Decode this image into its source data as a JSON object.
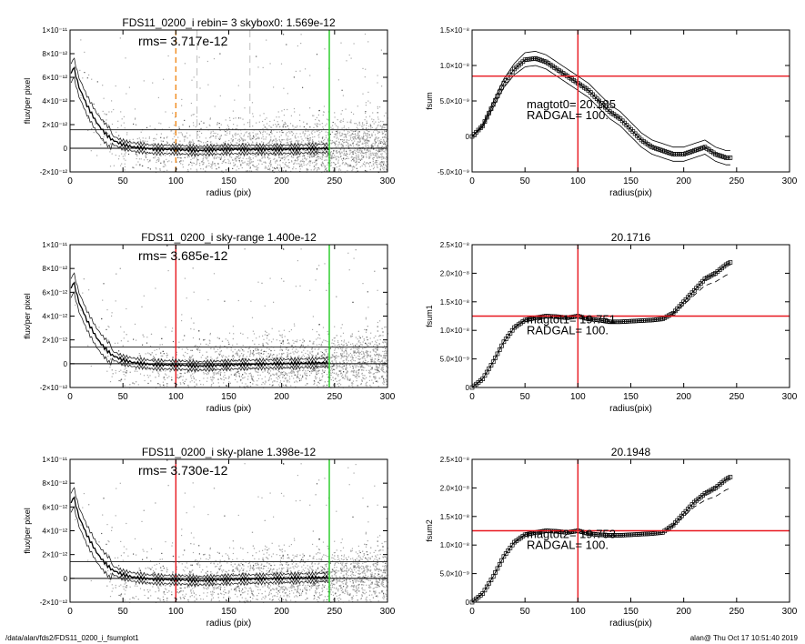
{
  "footer": {
    "path": "/data/alan/fds2/FDS11_0200_i_fsumplot1",
    "user_stamp": "alan@  Thu Oct 17 10:51:40 2019"
  },
  "colors": {
    "scatter": "#a8a8a8",
    "red_line": "#e8161e",
    "green_line": "#22cc22",
    "orange_line": "#f08a1c",
    "gray_dash": "#bfbfbf",
    "profile": "#000000"
  },
  "chart_data": [
    {
      "id": "left-1",
      "type": "scatter",
      "title": "FDS11_0200_i rebin= 3    skybox0:  1.569e-12",
      "annotation": "rms= 3.717e-12",
      "xlabel": "radius (pix)",
      "ylabel": "flux/per pixel",
      "xlim": [
        0,
        300
      ],
      "ylim": [
        -2e-12,
        1e-11
      ],
      "xticks": [
        0,
        50,
        100,
        150,
        200,
        250,
        300
      ],
      "xtick_labels": [
        "0",
        "50",
        "100",
        "150",
        "200",
        "250",
        "300"
      ],
      "yticks": [
        -2e-12,
        0,
        2e-12,
        4e-12,
        6e-12,
        8e-12,
        1e-11
      ],
      "ytick_labels": [
        "-2×10⁻¹²",
        "0",
        "2×10⁻¹²",
        "4×10⁻¹²",
        "6×10⁻¹²",
        "8×10⁻¹²",
        "1×10⁻¹¹"
      ],
      "hlines": [
        1.569e-12,
        0
      ],
      "vlines": [
        {
          "x": 100,
          "color": "orange",
          "style": "dashed"
        },
        {
          "x": 120,
          "color": "gray",
          "style": "dashed"
        },
        {
          "x": 170,
          "color": "gray",
          "style": "dashed"
        },
        {
          "x": 245,
          "color": "green",
          "style": "solid"
        }
      ],
      "profile": {
        "x": [
          1,
          3,
          6,
          9,
          12,
          15,
          20,
          25,
          30,
          35,
          40,
          50,
          60,
          70,
          80,
          100,
          120,
          150,
          200,
          245
        ],
        "y": [
          6.2e-12,
          7e-12,
          6e-12,
          5e-12,
          4.5e-12,
          3.8e-12,
          3e-12,
          2.2e-12,
          1.6e-12,
          1.1e-12,
          7e-13,
          3e-13,
          1e-13,
          0,
          -1e-13,
          -1e-13,
          -2e-13,
          -1e-13,
          -1e-13,
          0
        ]
      }
    },
    {
      "id": "right-1",
      "type": "line",
      "title": "",
      "annotation": "magtot0=  20.185\nRADGAL=    100.",
      "xlabel": "radius(pix)",
      "ylabel": "fsum",
      "xlim": [
        0,
        300
      ],
      "ylim": [
        -5e-09,
        1.5e-08
      ],
      "xticks": [
        0,
        50,
        100,
        150,
        200,
        250,
        300
      ],
      "xtick_labels": [
        "0",
        "50",
        "100",
        "150",
        "200",
        "250",
        "300"
      ],
      "yticks": [
        -5e-09,
        0,
        5e-09,
        1e-08,
        1.5e-08
      ],
      "ytick_labels": [
        "-5.0×10⁻⁹",
        "0",
        "5.0×10⁻⁹",
        "1.0×10⁻⁸",
        "1.5×10⁻⁸"
      ],
      "crosshair": {
        "x": 100,
        "y": 8.5e-09
      },
      "x": [
        0,
        10,
        20,
        30,
        40,
        50,
        60,
        70,
        80,
        90,
        100,
        110,
        120,
        130,
        140,
        150,
        160,
        170,
        180,
        190,
        200,
        210,
        220,
        230,
        240,
        245
      ],
      "y": [
        0,
        1.5e-09,
        4.5e-09,
        7.5e-09,
        9.5e-09,
        1.08e-08,
        1.1e-08,
        1.05e-08,
        9.5e-09,
        8.5e-09,
        7.5e-09,
        6.5e-09,
        5e-09,
        3.5e-09,
        2.5e-09,
        1e-09,
        -5e-10,
        -1.5e-09,
        -2e-09,
        -2.5e-09,
        -2.5e-09,
        -2e-09,
        -1.5e-09,
        -2.5e-09,
        -3e-09,
        -3e-09
      ],
      "band": 1e-09
    },
    {
      "id": "left-2",
      "type": "scatter",
      "title": "FDS11_0200_i sky-range  1.400e-12",
      "annotation": "rms= 3.685e-12",
      "xlabel": "radius (pix)",
      "ylabel": "flux/per pixel",
      "xlim": [
        0,
        300
      ],
      "ylim": [
        -2e-12,
        1e-11
      ],
      "xticks": [
        0,
        50,
        100,
        150,
        200,
        250,
        300
      ],
      "xtick_labels": [
        "0",
        "50",
        "100",
        "150",
        "200",
        "250",
        "300"
      ],
      "yticks": [
        -2e-12,
        0,
        2e-12,
        4e-12,
        6e-12,
        8e-12,
        1e-11
      ],
      "ytick_labels": [
        "-2×10⁻¹²",
        "0",
        "2×10⁻¹²",
        "4×10⁻¹²",
        "6×10⁻¹²",
        "8×10⁻¹²",
        "1×10⁻¹¹"
      ],
      "hlines": [
        1.4e-12,
        0
      ],
      "vlines": [
        {
          "x": 100,
          "color": "red",
          "style": "solid"
        },
        {
          "x": 245,
          "color": "green",
          "style": "solid"
        }
      ],
      "profile": {
        "x": [
          1,
          3,
          6,
          9,
          12,
          15,
          20,
          25,
          30,
          35,
          40,
          50,
          60,
          70,
          80,
          100,
          120,
          150,
          200,
          245
        ],
        "y": [
          6.2e-12,
          7e-12,
          6e-12,
          5e-12,
          4.5e-12,
          3.8e-12,
          3e-12,
          2.2e-12,
          1.6e-12,
          1.1e-12,
          7e-13,
          3e-13,
          1e-13,
          0,
          -1e-13,
          -1e-13,
          -2e-13,
          -1e-13,
          0,
          1e-13
        ]
      }
    },
    {
      "id": "right-2",
      "type": "line",
      "title": "20.1716",
      "annotation": "magtot1=  19.751\nRADGAL=    100.",
      "xlabel": "radius(pix)",
      "ylabel": "fsum1",
      "xlim": [
        0,
        300
      ],
      "ylim": [
        0,
        2.5e-08
      ],
      "xticks": [
        0,
        50,
        100,
        150,
        200,
        250,
        300
      ],
      "xtick_labels": [
        "0",
        "50",
        "100",
        "150",
        "200",
        "250",
        "300"
      ],
      "yticks": [
        0,
        5e-09,
        1e-08,
        1.5e-08,
        2e-08,
        2.5e-08
      ],
      "ytick_labels": [
        "0",
        "5.0×10⁻⁹",
        "1.0×10⁻⁸",
        "1.5×10⁻⁸",
        "2.0×10⁻⁸",
        "2.5×10⁻⁸"
      ],
      "crosshair": {
        "x": 100,
        "y": 1.25e-08
      },
      "x": [
        0,
        10,
        20,
        30,
        40,
        50,
        60,
        70,
        80,
        90,
        100,
        110,
        120,
        130,
        140,
        150,
        160,
        170,
        180,
        190,
        200,
        210,
        220,
        230,
        240,
        245
      ],
      "y": [
        0,
        1.5e-09,
        4.5e-09,
        8e-09,
        1.05e-08,
        1.18e-08,
        1.22e-08,
        1.25e-08,
        1.24e-08,
        1.22e-08,
        1.25e-08,
        1.2e-08,
        1.18e-08,
        1.15e-08,
        1.15e-08,
        1.16e-08,
        1.17e-08,
        1.18e-08,
        1.2e-08,
        1.3e-08,
        1.5e-08,
        1.7e-08,
        1.9e-08,
        2e-08,
        2.15e-08,
        2.2e-08
      ],
      "band": 0
    },
    {
      "id": "left-3",
      "type": "scatter",
      "title": "FDS11_0200_i sky-plane  1.398e-12",
      "annotation": "rms= 3.730e-12",
      "xlabel": "radius (pix)",
      "ylabel": "flux/per pixel",
      "xlim": [
        0,
        300
      ],
      "ylim": [
        -2e-12,
        1e-11
      ],
      "xticks": [
        0,
        50,
        100,
        150,
        200,
        250,
        300
      ],
      "xtick_labels": [
        "0",
        "50",
        "100",
        "150",
        "200",
        "250",
        "300"
      ],
      "yticks": [
        -2e-12,
        0,
        2e-12,
        4e-12,
        6e-12,
        8e-12,
        1e-11
      ],
      "ytick_labels": [
        "-2×10⁻¹²",
        "0",
        "2×10⁻¹²",
        "4×10⁻¹²",
        "6×10⁻¹²",
        "8×10⁻¹²",
        "1×10⁻¹¹"
      ],
      "hlines": [
        1.398e-12,
        0
      ],
      "vlines": [
        {
          "x": 100,
          "color": "red",
          "style": "solid"
        },
        {
          "x": 245,
          "color": "green",
          "style": "solid"
        }
      ],
      "profile": {
        "x": [
          1,
          3,
          6,
          9,
          12,
          15,
          20,
          25,
          30,
          35,
          40,
          50,
          60,
          70,
          80,
          100,
          120,
          150,
          200,
          245
        ],
        "y": [
          6.2e-12,
          7e-12,
          6e-12,
          5e-12,
          4.5e-12,
          3.8e-12,
          3e-12,
          2.2e-12,
          1.6e-12,
          1.1e-12,
          7e-13,
          3e-13,
          1e-13,
          0,
          -1e-13,
          -1e-13,
          -2e-13,
          -1e-13,
          0,
          1e-13
        ]
      }
    },
    {
      "id": "right-3",
      "type": "line",
      "title": "20.1948",
      "annotation": "magtot2=  19.753\nRADGAL=    100.",
      "xlabel": "radius(pix)",
      "ylabel": "fsum2",
      "xlim": [
        0,
        300
      ],
      "ylim": [
        0,
        2.5e-08
      ],
      "xticks": [
        0,
        50,
        100,
        150,
        200,
        250,
        300
      ],
      "xtick_labels": [
        "0",
        "50",
        "100",
        "150",
        "200",
        "250",
        "300"
      ],
      "yticks": [
        0,
        5e-09,
        1e-08,
        1.5e-08,
        2e-08,
        2.5e-08
      ],
      "ytick_labels": [
        "0",
        "5.0×10⁻⁹",
        "1.0×10⁻⁸",
        "1.5×10⁻⁸",
        "2.0×10⁻⁸",
        "2.5×10⁻⁸"
      ],
      "crosshair": {
        "x": 100,
        "y": 1.25e-08
      },
      "x": [
        0,
        10,
        20,
        30,
        40,
        50,
        60,
        70,
        80,
        90,
        100,
        110,
        120,
        130,
        140,
        150,
        160,
        170,
        180,
        190,
        200,
        210,
        220,
        230,
        240,
        245
      ],
      "y": [
        0,
        1.5e-09,
        4.5e-09,
        8e-09,
        1.05e-08,
        1.18e-08,
        1.22e-08,
        1.25e-08,
        1.24e-08,
        1.22e-08,
        1.25e-08,
        1.2e-08,
        1.18e-08,
        1.17e-08,
        1.17e-08,
        1.18e-08,
        1.19e-08,
        1.2e-08,
        1.22e-08,
        1.35e-08,
        1.55e-08,
        1.75e-08,
        1.9e-08,
        2e-08,
        2.15e-08,
        2.2e-08
      ],
      "band": 0
    }
  ]
}
